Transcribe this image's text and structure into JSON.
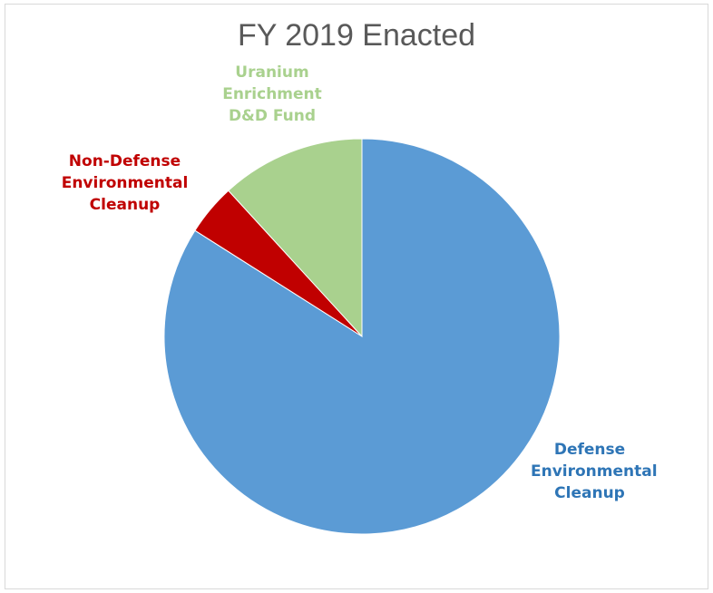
{
  "chart_data": {
    "type": "pie",
    "title": "FY 2019 Enacted",
    "categories": [
      "Defense Environmental Cleanup",
      "Non-Defense Environmental Cleanup",
      "Uranium Enrichment D&D Fund"
    ],
    "values": [
      84,
      4.2,
      11.8
    ],
    "labels": [
      "Defense\nEnvironmental\nCleanup",
      "Non-Defense\nEnvironmental\nCleanup",
      "Uranium\nEnrichment\nD&D Fund"
    ],
    "colors": [
      "#5b9bd5",
      "#c00000",
      "#a9d18e"
    ],
    "label_colors": [
      "#2e75b6",
      "#c00000",
      "#a9d18e"
    ],
    "start_angle_deg": 0,
    "direction": "clockwise",
    "legend": "none"
  }
}
